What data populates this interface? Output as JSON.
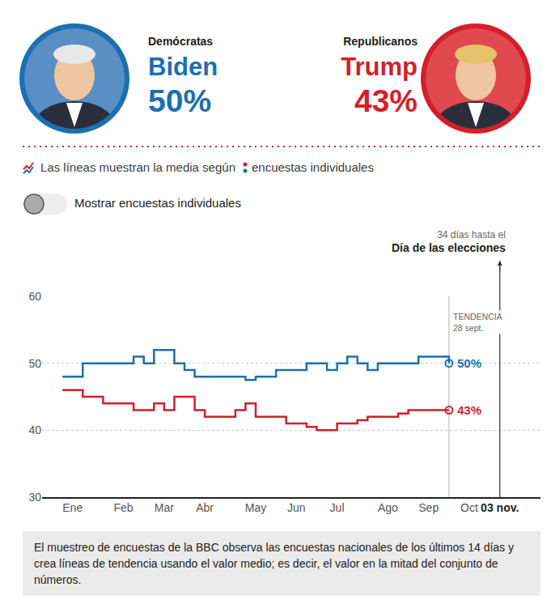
{
  "header": {
    "candidates": [
      {
        "party": "Demócratas",
        "name": "Biden",
        "percent": "50%",
        "color": "#1c6fb0"
      },
      {
        "party": "Republicanos",
        "name": "Trump",
        "percent": "43%",
        "color": "#d41f2b"
      }
    ]
  },
  "key": {
    "lines": "Las líneas muestran la media según",
    "dots": "encuestas individuales"
  },
  "toggle": "Mostrar encuestas individuales",
  "chart_data": {
    "type": "line",
    "categories": [
      null,
      null,
      null,
      "Ene",
      null,
      null,
      null,
      null,
      "Feb",
      null,
      null,
      null,
      "Mar",
      null,
      null,
      null,
      "Abr",
      null,
      null,
      null,
      null,
      "May",
      null,
      null,
      null,
      "Jun",
      null,
      null,
      null,
      "Jul",
      null,
      null,
      null,
      null,
      "Ago",
      null,
      null,
      null,
      "Sep",
      null,
      null,
      null,
      "Oct",
      null,
      null,
      "03 nov.",
      null,
      null,
      null,
      null
    ],
    "series": [
      {
        "name": "Biden",
        "color": "#1c6fb0",
        "line_style": "step",
        "marker": "circle-open",
        "values": [
          null,
          null,
          48,
          48,
          50,
          50,
          50,
          50,
          50,
          51,
          50,
          52,
          52,
          50,
          49,
          48,
          48,
          48,
          48,
          48,
          47.5,
          48,
          48,
          49,
          49,
          49,
          50,
          50,
          49,
          50,
          51,
          50,
          49,
          50,
          50,
          50,
          50,
          51,
          51,
          51,
          50,
          null,
          null,
          null,
          null,
          null,
          null,
          null,
          null,
          null
        ]
      },
      {
        "name": "Trump",
        "color": "#d41f2b",
        "line_style": "step",
        "marker": "circle-open",
        "values": [
          null,
          null,
          46,
          46,
          45,
          45,
          44,
          44,
          44,
          43,
          43,
          44,
          43,
          45,
          45,
          43,
          42,
          42,
          42,
          43,
          44,
          42,
          42,
          42,
          41,
          41,
          40.5,
          40,
          40,
          41,
          41,
          41.5,
          42,
          42,
          42,
          42.5,
          43,
          43,
          43,
          43,
          43,
          null,
          null,
          null,
          null,
          null,
          null,
          null,
          null,
          null
        ]
      }
    ],
    "ylim": [
      30,
      60
    ],
    "yticks": [
      30,
      40,
      50,
      60
    ],
    "grid": true,
    "annotations": [
      {
        "text": [
          "34 días hasta el",
          "Día de las elecciones"
        ],
        "x": 45,
        "line_style": "arrow"
      },
      {
        "text": [
          "TENDENCIA",
          "28 sept."
        ],
        "x": 40,
        "line_style": "solid"
      },
      {
        "text": "50%",
        "x": 40,
        "y": 50,
        "color": "#1c6fb0"
      },
      {
        "text": "43%",
        "x": 40,
        "y": 43,
        "color": "#d41f2b"
      }
    ]
  },
  "note": "El muestreo de encuestas de la BBC observa las encuestas nacionales de los últimos 14 días y crea líneas de tendencia usando el valor medio; es decir, el valor en la mitad del conjunto de números."
}
